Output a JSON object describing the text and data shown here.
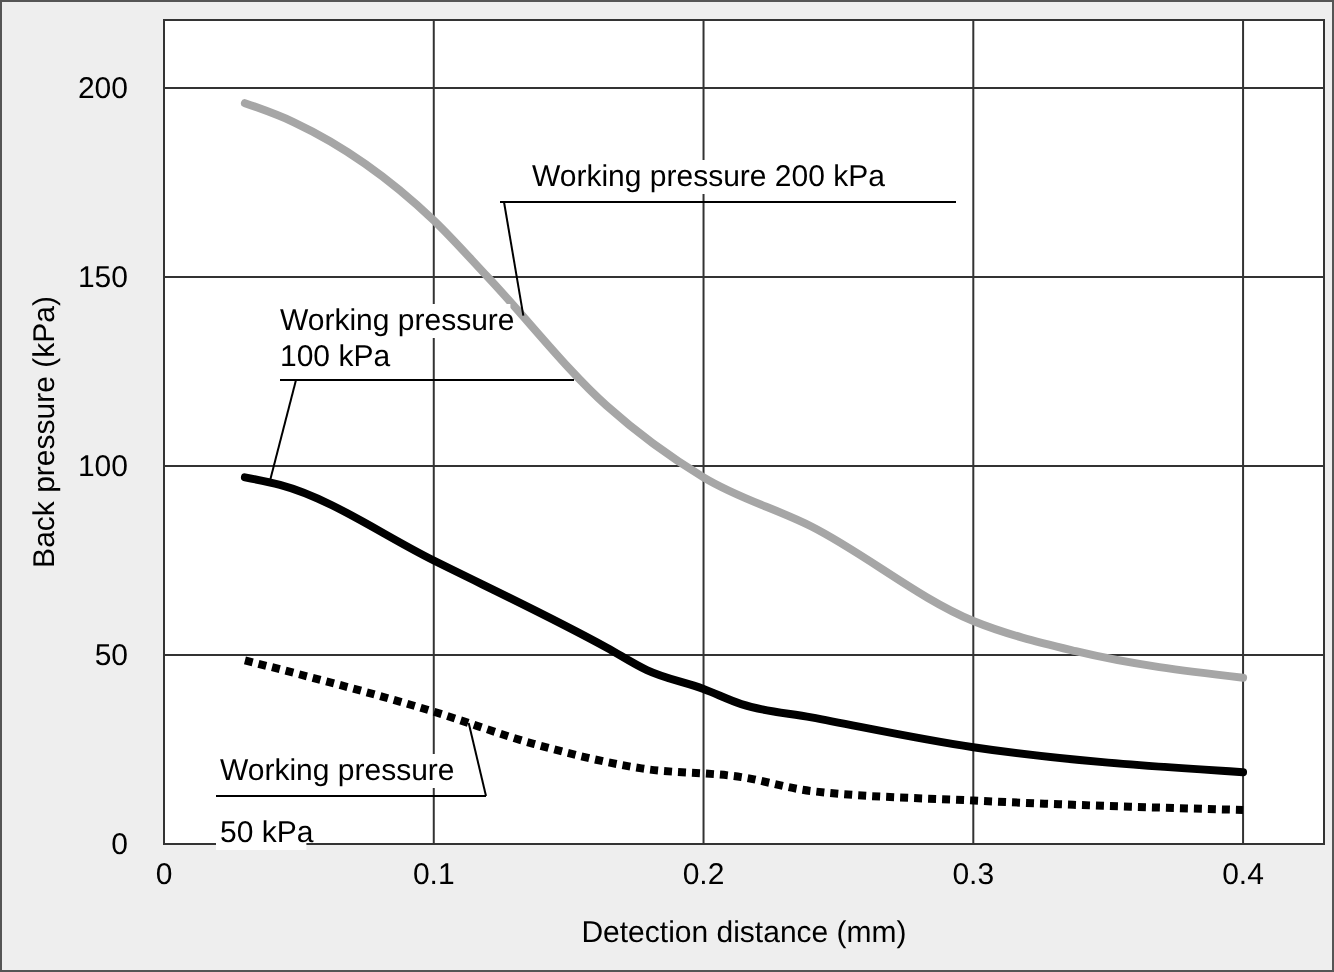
{
  "chart_data": {
    "type": "line",
    "xlabel": "Detection distance (mm)",
    "ylabel": "Back pressure (kPa)",
    "xlim": [
      0,
      0.43
    ],
    "xticks": [
      0,
      0.1,
      0.2,
      0.3,
      0.4
    ],
    "ylim": [
      0,
      218
    ],
    "yticks": [
      0,
      50,
      100,
      150,
      200
    ],
    "grid": true,
    "legend": false,
    "series": [
      {
        "name": "Working pressure 200 kPa",
        "color": "#a6a6a6",
        "line_style": "solid",
        "x": [
          0.03,
          0.048,
          0.1,
          0.12,
          0.164,
          0.2,
          0.24,
          0.3,
          0.338,
          0.4
        ],
        "values": [
          196,
          191,
          165,
          150,
          116,
          97,
          84,
          59,
          51,
          44
        ]
      },
      {
        "name": "Working pressure 100 kPa",
        "color": "#000000",
        "line_style": "solid",
        "x": [
          0.03,
          0.043,
          0.1,
          0.164,
          0.179,
          0.2,
          0.214,
          0.24,
          0.3,
          0.4
        ],
        "values": [
          97,
          95,
          75,
          52,
          46,
          41,
          37,
          33.5,
          25.6,
          19
        ]
      },
      {
        "name": "Working pressure 50 kPa",
        "color": "#000000",
        "line_style": "dotted",
        "x": [
          0.03,
          0.1,
          0.137,
          0.177,
          0.214,
          0.24,
          0.3,
          0.4
        ],
        "values": [
          48.6,
          35,
          26.5,
          20,
          17.7,
          14,
          11.5,
          9
        ]
      }
    ]
  }
}
